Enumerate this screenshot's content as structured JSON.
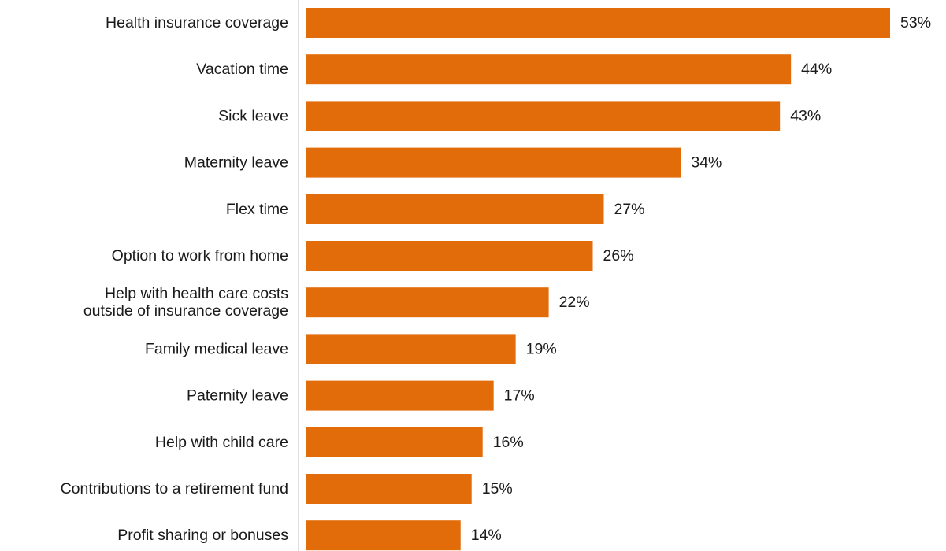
{
  "chart_data": {
    "type": "bar",
    "orientation": "horizontal",
    "categories": [
      [
        "Health insurance coverage"
      ],
      [
        "Vacation time"
      ],
      [
        "Sick leave"
      ],
      [
        "Maternity leave"
      ],
      [
        "Flex time"
      ],
      [
        "Option to work from home"
      ],
      [
        "Help with health care costs",
        "outside of insurance coverage"
      ],
      [
        "Family medical leave"
      ],
      [
        "Paternity leave"
      ],
      [
        "Help with child care"
      ],
      [
        "Contributions to a retirement fund"
      ],
      [
        "Profit sharing or bonuses"
      ]
    ],
    "values": [
      53,
      44,
      43,
      34,
      27,
      26,
      22,
      19,
      17,
      16,
      15,
      14
    ],
    "value_labels": [
      "53%",
      "44%",
      "43%",
      "34%",
      "27%",
      "26%",
      "22%",
      "19%",
      "17%",
      "16%",
      "15%",
      "14%"
    ],
    "value_suffix": "%",
    "title": "",
    "xlabel": "",
    "ylabel": "",
    "xlim": [
      0,
      53
    ],
    "grid": false,
    "legend": "none",
    "bar_color": "#e36c0a",
    "axis_color": "#bfbfbf"
  }
}
